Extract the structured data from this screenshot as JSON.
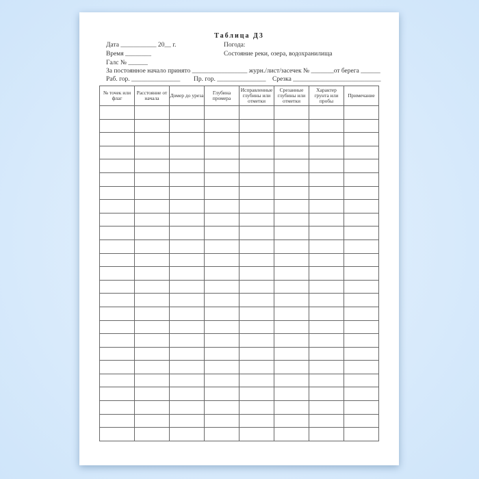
{
  "document": {
    "title": "Таблица Д3",
    "fields": {
      "date": "Дата ___________ 20__ г.",
      "weather": "Погода:",
      "time": "Время ________",
      "water_state": "Состояние реки, озера, водохранилища",
      "gals": "Галс № ______",
      "constant_start": "За постоянное начало принято _________________ журн./лист/засечек № _______от берега ______",
      "work_level": "Раб. гор. _______________",
      "pr_level": "Пр. гор. _______________",
      "cut": "Срезка ___________________________"
    },
    "table": {
      "headers": [
        "№ точек или флаг",
        "Расстояние от начала",
        "Домер до уреза",
        "Глубина промера",
        "Исправленные глубины или отметки",
        "Срезанные глубины или отметки",
        "Характер грунта или пробы",
        "Примечание"
      ],
      "empty_rows": 25
    }
  }
}
